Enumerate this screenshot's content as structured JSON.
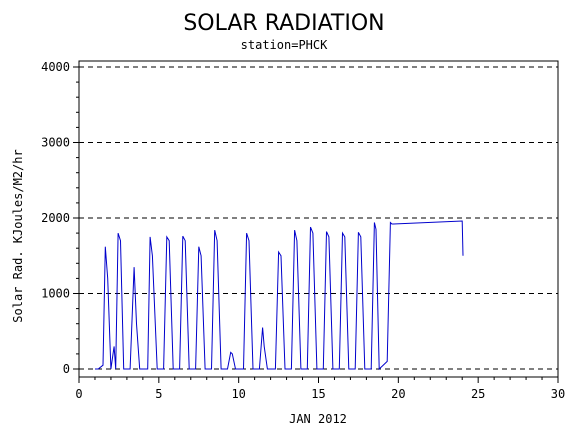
{
  "chart_data": {
    "type": "line",
    "title": "SOLAR RADIATION",
    "subtitle": "station=PHCK",
    "xlabel": "JAN 2012",
    "ylabel": "Solar Rad. KJoules/M2/hr",
    "xlim": [
      0,
      30
    ],
    "ylim": [
      0,
      4000
    ],
    "x_ticks": [
      0,
      5,
      10,
      15,
      20,
      25,
      30
    ],
    "y_ticks": [
      0,
      1000,
      2000,
      3000,
      4000
    ],
    "grid": "horizontal-dashed",
    "series_color": "#0000cc",
    "series": [
      {
        "x": [
          1.0,
          1.2,
          1.5,
          1.65,
          1.8,
          2.0,
          2.2,
          2.3,
          2.45,
          2.6,
          2.8,
          3.2,
          3.45,
          3.6,
          3.8,
          4.3,
          4.45,
          4.6,
          4.9,
          5.3,
          5.5,
          5.65,
          5.9,
          6.3,
          6.5,
          6.65,
          6.9,
          7.3,
          7.5,
          7.65,
          7.9,
          8.3,
          8.5,
          8.65,
          8.9,
          9.3,
          9.5,
          9.6,
          9.8,
          10.3,
          10.5,
          10.65,
          10.9,
          11.3,
          11.5,
          11.6,
          11.8,
          12.3,
          12.5,
          12.65,
          12.9,
          13.3,
          13.5,
          13.65,
          13.9,
          14.3,
          14.5,
          14.65,
          14.9,
          15.3,
          15.5,
          15.65,
          15.9,
          16.3,
          16.5,
          16.65,
          16.9,
          17.3,
          17.5,
          17.65,
          17.9,
          18.3,
          18.5,
          18.6,
          18.8,
          19.3,
          19.5,
          19.6,
          19.7,
          24.0,
          24.05
        ],
        "y": [
          0,
          0,
          50,
          1620,
          1200,
          0,
          300,
          0,
          1800,
          1700,
          0,
          0,
          1350,
          600,
          0,
          0,
          1750,
          1500,
          0,
          0,
          1750,
          1700,
          0,
          0,
          1760,
          1700,
          0,
          0,
          1620,
          1500,
          0,
          0,
          1840,
          1700,
          0,
          0,
          220,
          200,
          0,
          0,
          1800,
          1700,
          0,
          0,
          550,
          300,
          0,
          0,
          1550,
          1500,
          0,
          0,
          1840,
          1700,
          0,
          0,
          1880,
          1800,
          0,
          0,
          1820,
          1750,
          0,
          0,
          1800,
          1750,
          0,
          0,
          1810,
          1750,
          0,
          0,
          1940,
          1850,
          0,
          100,
          1940,
          1920,
          1920,
          1960,
          1500
        ]
      }
    ]
  }
}
